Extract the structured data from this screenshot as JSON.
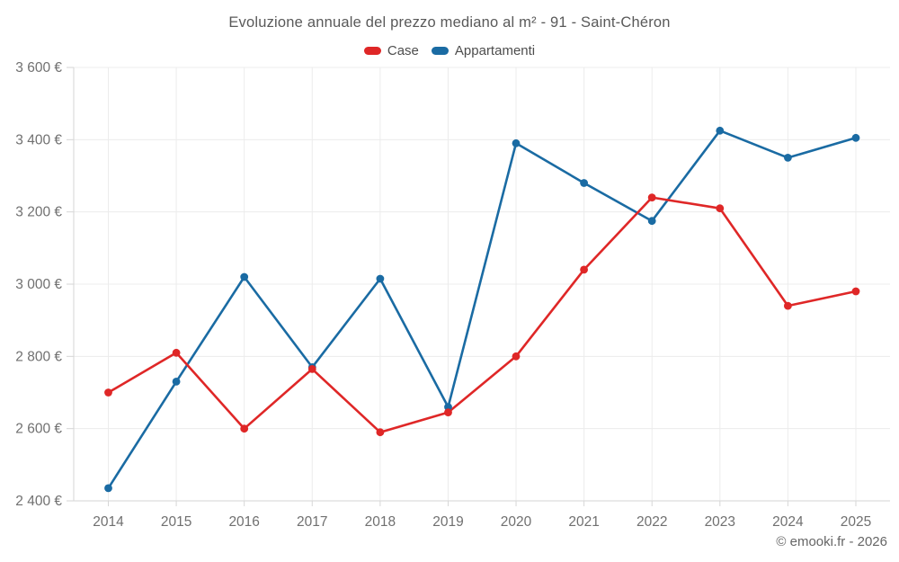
{
  "title": "Evoluzione annuale del prezzo mediano al m² - 91 - Saint-Chéron",
  "footer": "© emooki.fr - 2026",
  "legend": {
    "items": [
      {
        "label": "Case",
        "color": "#df2727"
      },
      {
        "label": "Appartamenti",
        "color": "#1a6ba3"
      }
    ]
  },
  "chart_data": {
    "type": "line",
    "title": "Evoluzione annuale del prezzo mediano al m² - 91 - Saint-Chéron",
    "categories": [
      "2014",
      "2015",
      "2016",
      "2017",
      "2018",
      "2019",
      "2020",
      "2021",
      "2022",
      "2023",
      "2024",
      "2025"
    ],
    "series": [
      {
        "name": "Case",
        "color": "#df2727",
        "values": [
          2700,
          2810,
          2600,
          2765,
          2590,
          2645,
          2800,
          3040,
          3240,
          3210,
          2940,
          2980
        ]
      },
      {
        "name": "Appartamenti",
        "color": "#1a6ba3",
        "values": [
          2435,
          2730,
          3020,
          2770,
          3015,
          2660,
          3390,
          3280,
          3175,
          3425,
          3350,
          3405
        ]
      }
    ],
    "xlabel": "",
    "ylabel": "",
    "ylim": [
      2400,
      3600
    ],
    "y_ticks": [
      {
        "value": 2400,
        "label": "2 400 €"
      },
      {
        "value": 2600,
        "label": "2 600 €"
      },
      {
        "value": 2800,
        "label": "2 800 €"
      },
      {
        "value": 3000,
        "label": "3 000 €"
      },
      {
        "value": 3200,
        "label": "3 200 €"
      },
      {
        "value": 3400,
        "label": "3 400 €"
      },
      {
        "value": 3600,
        "label": "3 600 €"
      }
    ],
    "grid": true,
    "legend_position": "top",
    "colors": {
      "grid_line": "#ececec",
      "axis_line": "#d6d6d6",
      "tick_label": "#707070",
      "title_text": "#595959"
    }
  }
}
